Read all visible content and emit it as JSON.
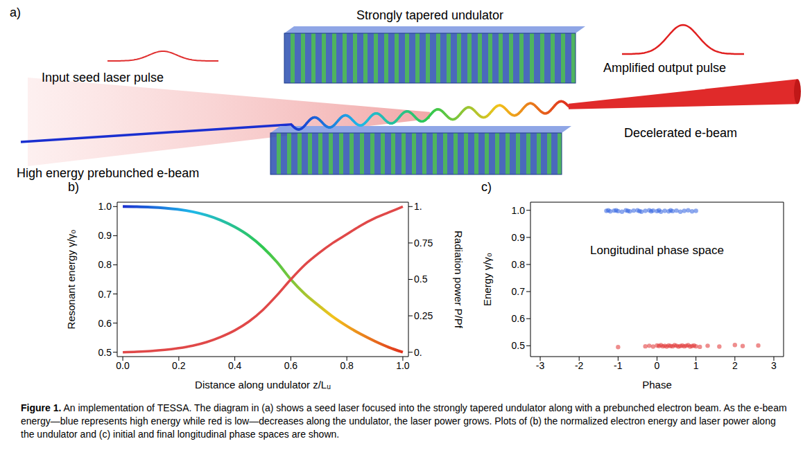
{
  "panel_a": {
    "label": "a)",
    "undulator": "Strongly tapered undulator",
    "seed": "Input seed laser pulse",
    "output": "Amplified output pulse",
    "ebeam_in": "High energy prebunched e-beam",
    "ebeam_out": "Decelerated e-beam"
  },
  "chart_data": [
    {
      "type": "line",
      "label": "b)",
      "x_label": "Distance along undulator z/Lᵤ",
      "y_label": "Resonant energy γ/γ₀",
      "y2_label": "Radiation power P/Pf",
      "x": [
        0,
        0.05,
        0.1,
        0.15,
        0.2,
        0.25,
        0.3,
        0.35,
        0.4,
        0.45,
        0.5,
        0.55,
        0.6,
        0.65,
        0.7,
        0.75,
        0.8,
        0.85,
        0.9,
        0.95,
        1.0
      ],
      "series": [
        {
          "colors": [
            "#1a2fd0",
            "#1fb8e8",
            "#2ec850",
            "#f2c31c",
            "#e0301e"
          ],
          "values": [
            1.0,
            0.9995,
            0.998,
            0.995,
            0.99,
            0.982,
            0.97,
            0.953,
            0.93,
            0.9,
            0.86,
            0.81,
            0.75,
            0.7,
            0.66,
            0.622,
            0.59,
            0.562,
            0.538,
            0.517,
            0.5
          ]
        },
        {
          "color": "#e04848",
          "axis": "y2",
          "values": [
            0,
            0.003,
            0.008,
            0.016,
            0.028,
            0.045,
            0.07,
            0.105,
            0.15,
            0.21,
            0.29,
            0.39,
            0.5,
            0.6,
            0.68,
            0.75,
            0.81,
            0.87,
            0.92,
            0.96,
            1.0
          ]
        }
      ],
      "xlim": [
        -0.02,
        1.02
      ],
      "xticks": [
        {
          "value": 0,
          "label": "0.0"
        },
        0.2,
        0.4,
        0.6,
        0.8,
        {
          "value": 1,
          "label": "1.0"
        }
      ],
      "ylim": [
        0.485,
        1.015
      ],
      "yticks": [
        0.5,
        0.6,
        0.7,
        0.8,
        0.9,
        {
          "value": 1,
          "label": "1.0"
        }
      ],
      "y2lim": [
        -0.03,
        1.03
      ],
      "y2ticks": [
        {
          "value": 0,
          "label": "0."
        },
        0.25,
        0.5,
        0.75,
        {
          "value": 1,
          "label": "1."
        }
      ]
    },
    {
      "type": "scatter",
      "label": "c)",
      "x_label": "Phase",
      "y_label": "Energy γ/γ₀",
      "annotation": "Longitudinal phase space",
      "series": [
        {
          "color": "#3060e0",
          "marker": "circle",
          "x": [
            -1.3,
            -1.25,
            -1.2,
            -1.1,
            -1.05,
            -1.0,
            -0.9,
            -0.8,
            -0.75,
            -0.7,
            -0.6,
            -0.5,
            -0.45,
            -0.4,
            -0.3,
            -0.2,
            -0.15,
            -0.1,
            0.0,
            0.05,
            0.1,
            0.2,
            0.3,
            0.35,
            0.4,
            0.5,
            0.6,
            0.7,
            0.8,
            0.9,
            1.0
          ],
          "values": [
            0.998,
            1.0,
            0.996,
            0.999,
            1.0,
            0.997,
            0.995,
            1.0,
            0.998,
            0.996,
            0.999,
            1.0,
            0.997,
            0.995,
            0.998,
            1.0,
            0.996,
            0.999,
            0.997,
            1.0,
            0.995,
            0.998,
            0.996,
            1.0,
            0.997,
            0.999,
            0.995,
            0.998,
            1.0,
            0.996,
            0.998
          ]
        },
        {
          "color": "#e03030",
          "marker": "circle",
          "x": [
            -1.0,
            -0.3,
            -0.2,
            -0.1,
            0.0,
            0.05,
            0.1,
            0.15,
            0.2,
            0.25,
            0.3,
            0.35,
            0.4,
            0.45,
            0.5,
            0.55,
            0.6,
            0.65,
            0.7,
            0.75,
            0.8,
            0.85,
            0.9,
            0.95,
            1.0,
            1.1,
            1.3,
            1.6,
            2.0,
            2.2,
            2.6
          ],
          "values": [
            0.495,
            0.498,
            0.5,
            0.497,
            0.501,
            0.499,
            0.502,
            0.498,
            0.5,
            0.497,
            0.501,
            0.499,
            0.498,
            0.502,
            0.5,
            0.497,
            0.499,
            0.501,
            0.498,
            0.5,
            0.502,
            0.497,
            0.499,
            0.501,
            0.498,
            0.496,
            0.5,
            0.497,
            0.503,
            0.499,
            0.501
          ]
        }
      ],
      "xlim": [
        -3.25,
        3.25
      ],
      "xticks": [
        -3,
        -2,
        -1,
        0,
        1,
        2,
        3
      ],
      "ylim": [
        0.46,
        1.03
      ],
      "yticks": [
        0.5,
        0.6,
        0.7,
        0.8,
        0.9,
        {
          "value": 1,
          "label": "1.0"
        }
      ]
    }
  ],
  "caption": {
    "label": "Figure 1.",
    "text": "An implementation of TESSA. The diagram in (a) shows a seed laser focused into the strongly tapered undulator along with a prebunched electron beam. As the e-beam energy—blue represents high energy while red is low—decreases along the undulator, the laser power grows. Plots of (b) the normalized electron energy and laser power along the undulator and (c) initial and final longitudinal phase spaces are shown."
  }
}
